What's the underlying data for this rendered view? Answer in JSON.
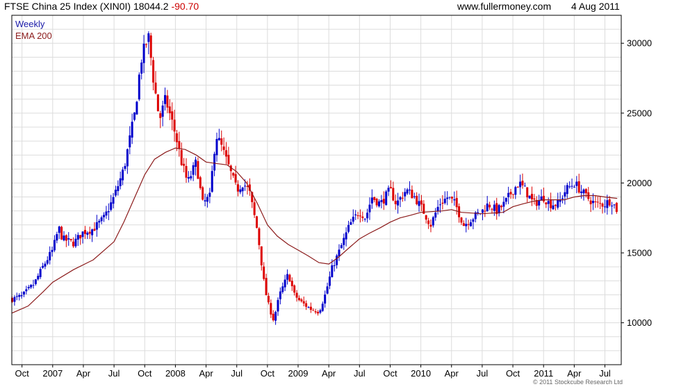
{
  "header": {
    "title": "FTSE China 25 Index (XIN0I)",
    "last": "18044.2",
    "change": "-90.70",
    "site": "www.fullermoney.com",
    "date": "4 Aug 2011"
  },
  "footer": {
    "copyright": "© 2011 Stockcube Research Ltd"
  },
  "colors": {
    "up": "#0000cc",
    "down": "#dd0000",
    "ema": "#8b1a1a",
    "grid": "#dcdcdc",
    "frame": "#000000"
  },
  "chart_data": {
    "type": "candlestick",
    "legend": [
      "Weekly",
      "EMA 200"
    ],
    "legend_position": "top-left",
    "grid": true,
    "y_axis_side": "right",
    "ylim": [
      7000,
      32000
    ],
    "y_ticks": [
      10000,
      15000,
      20000,
      25000,
      30000
    ],
    "xlim": [
      2006.667,
      2011.633
    ],
    "x_ticks": [
      {
        "label": "Oct",
        "x": 2006.75
      },
      {
        "label": "2007",
        "x": 2007.0
      },
      {
        "label": "Apr",
        "x": 2007.25
      },
      {
        "label": "Jul",
        "x": 2007.5
      },
      {
        "label": "Oct",
        "x": 2007.75
      },
      {
        "label": "2008",
        "x": 2008.0
      },
      {
        "label": "Apr",
        "x": 2008.25
      },
      {
        "label": "Jul",
        "x": 2008.5
      },
      {
        "label": "Oct",
        "x": 2008.75
      },
      {
        "label": "2009",
        "x": 2009.0
      },
      {
        "label": "Apr",
        "x": 2009.25
      },
      {
        "label": "Jul",
        "x": 2009.5
      },
      {
        "label": "Oct",
        "x": 2009.75
      },
      {
        "label": "2010",
        "x": 2010.0
      },
      {
        "label": "Apr",
        "x": 2010.25
      },
      {
        "label": "Jul",
        "x": 2010.5
      },
      {
        "label": "Oct",
        "x": 2010.75
      },
      {
        "label": "2011",
        "x": 2011.0
      },
      {
        "label": "Apr",
        "x": 2011.25
      },
      {
        "label": "Jul",
        "x": 2011.5
      }
    ],
    "close_path": [
      [
        2006.67,
        11700
      ],
      [
        2006.75,
        11900
      ],
      [
        2006.85,
        12800
      ],
      [
        2006.92,
        14000
      ],
      [
        2007.0,
        15200
      ],
      [
        2007.05,
        16800
      ],
      [
        2007.08,
        16000
      ],
      [
        2007.17,
        15700
      ],
      [
        2007.25,
        16500
      ],
      [
        2007.33,
        16700
      ],
      [
        2007.42,
        17500
      ],
      [
        2007.5,
        19000
      ],
      [
        2007.58,
        21000
      ],
      [
        2007.67,
        25000
      ],
      [
        2007.72,
        28800
      ],
      [
        2007.78,
        30500
      ],
      [
        2007.82,
        27500
      ],
      [
        2007.87,
        24500
      ],
      [
        2007.92,
        26000
      ],
      [
        2008.0,
        23500
      ],
      [
        2008.05,
        21500
      ],
      [
        2008.1,
        20000
      ],
      [
        2008.17,
        21500
      ],
      [
        2008.22,
        18500
      ],
      [
        2008.28,
        19000
      ],
      [
        2008.33,
        23500
      ],
      [
        2008.38,
        22500
      ],
      [
        2008.42,
        21500
      ],
      [
        2008.5,
        19500
      ],
      [
        2008.55,
        20000
      ],
      [
        2008.6,
        19500
      ],
      [
        2008.67,
        16500
      ],
      [
        2008.72,
        13000
      ],
      [
        2008.75,
        11500
      ],
      [
        2008.8,
        10200
      ],
      [
        2008.85,
        12000
      ],
      [
        2008.92,
        13500
      ],
      [
        2008.97,
        12000
      ],
      [
        2009.02,
        11500
      ],
      [
        2009.1,
        11000
      ],
      [
        2009.17,
        10800
      ],
      [
        2009.22,
        12000
      ],
      [
        2009.28,
        14000
      ],
      [
        2009.33,
        15000
      ],
      [
        2009.42,
        17000
      ],
      [
        2009.5,
        18000
      ],
      [
        2009.55,
        17500
      ],
      [
        2009.6,
        19000
      ],
      [
        2009.67,
        18500
      ],
      [
        2009.75,
        19500
      ],
      [
        2009.8,
        18500
      ],
      [
        2009.88,
        19500
      ],
      [
        2009.95,
        19000
      ],
      [
        2010.02,
        18000
      ],
      [
        2010.08,
        17000
      ],
      [
        2010.15,
        18500
      ],
      [
        2010.22,
        19000
      ],
      [
        2010.28,
        18500
      ],
      [
        2010.35,
        17000
      ],
      [
        2010.42,
        17500
      ],
      [
        2010.5,
        18000
      ],
      [
        2010.55,
        18500
      ],
      [
        2010.62,
        18000
      ],
      [
        2010.68,
        18500
      ],
      [
        2010.75,
        19500
      ],
      [
        2010.8,
        20000
      ],
      [
        2010.85,
        19500
      ],
      [
        2010.92,
        18500
      ],
      [
        2011.0,
        19000
      ],
      [
        2011.05,
        18500
      ],
      [
        2011.12,
        18500
      ],
      [
        2011.18,
        19500
      ],
      [
        2011.25,
        20000
      ],
      [
        2011.3,
        19500
      ],
      [
        2011.35,
        19000
      ],
      [
        2011.42,
        18500
      ],
      [
        2011.5,
        18500
      ],
      [
        2011.55,
        18800
      ],
      [
        2011.6,
        18044
      ]
    ],
    "ema_200": [
      [
        2006.67,
        10700
      ],
      [
        2006.8,
        11200
      ],
      [
        2006.92,
        12200
      ],
      [
        2007.0,
        12900
      ],
      [
        2007.17,
        13800
      ],
      [
        2007.33,
        14500
      ],
      [
        2007.5,
        15800
      ],
      [
        2007.58,
        17200
      ],
      [
        2007.67,
        19000
      ],
      [
        2007.75,
        20600
      ],
      [
        2007.83,
        21700
      ],
      [
        2007.92,
        22200
      ],
      [
        2008.0,
        22500
      ],
      [
        2008.08,
        22400
      ],
      [
        2008.17,
        22000
      ],
      [
        2008.25,
        21500
      ],
      [
        2008.33,
        21400
      ],
      [
        2008.42,
        21300
      ],
      [
        2008.5,
        20800
      ],
      [
        2008.58,
        20000
      ],
      [
        2008.67,
        18500
      ],
      [
        2008.75,
        17000
      ],
      [
        2008.83,
        16200
      ],
      [
        2008.92,
        15600
      ],
      [
        2009.0,
        15200
      ],
      [
        2009.08,
        14800
      ],
      [
        2009.17,
        14300
      ],
      [
        2009.25,
        14200
      ],
      [
        2009.33,
        14700
      ],
      [
        2009.42,
        15400
      ],
      [
        2009.5,
        16000
      ],
      [
        2009.58,
        16400
      ],
      [
        2009.67,
        16800
      ],
      [
        2009.75,
        17200
      ],
      [
        2009.83,
        17500
      ],
      [
        2009.92,
        17700
      ],
      [
        2010.0,
        17900
      ],
      [
        2010.17,
        18000
      ],
      [
        2010.25,
        18100
      ],
      [
        2010.33,
        17900
      ],
      [
        2010.5,
        17800
      ],
      [
        2010.67,
        17900
      ],
      [
        2010.75,
        18300
      ],
      [
        2010.83,
        18500
      ],
      [
        2010.92,
        18700
      ],
      [
        2011.0,
        18800
      ],
      [
        2011.17,
        18800
      ],
      [
        2011.25,
        19000
      ],
      [
        2011.33,
        19100
      ],
      [
        2011.42,
        19100
      ],
      [
        2011.5,
        19000
      ],
      [
        2011.6,
        18900
      ]
    ]
  }
}
